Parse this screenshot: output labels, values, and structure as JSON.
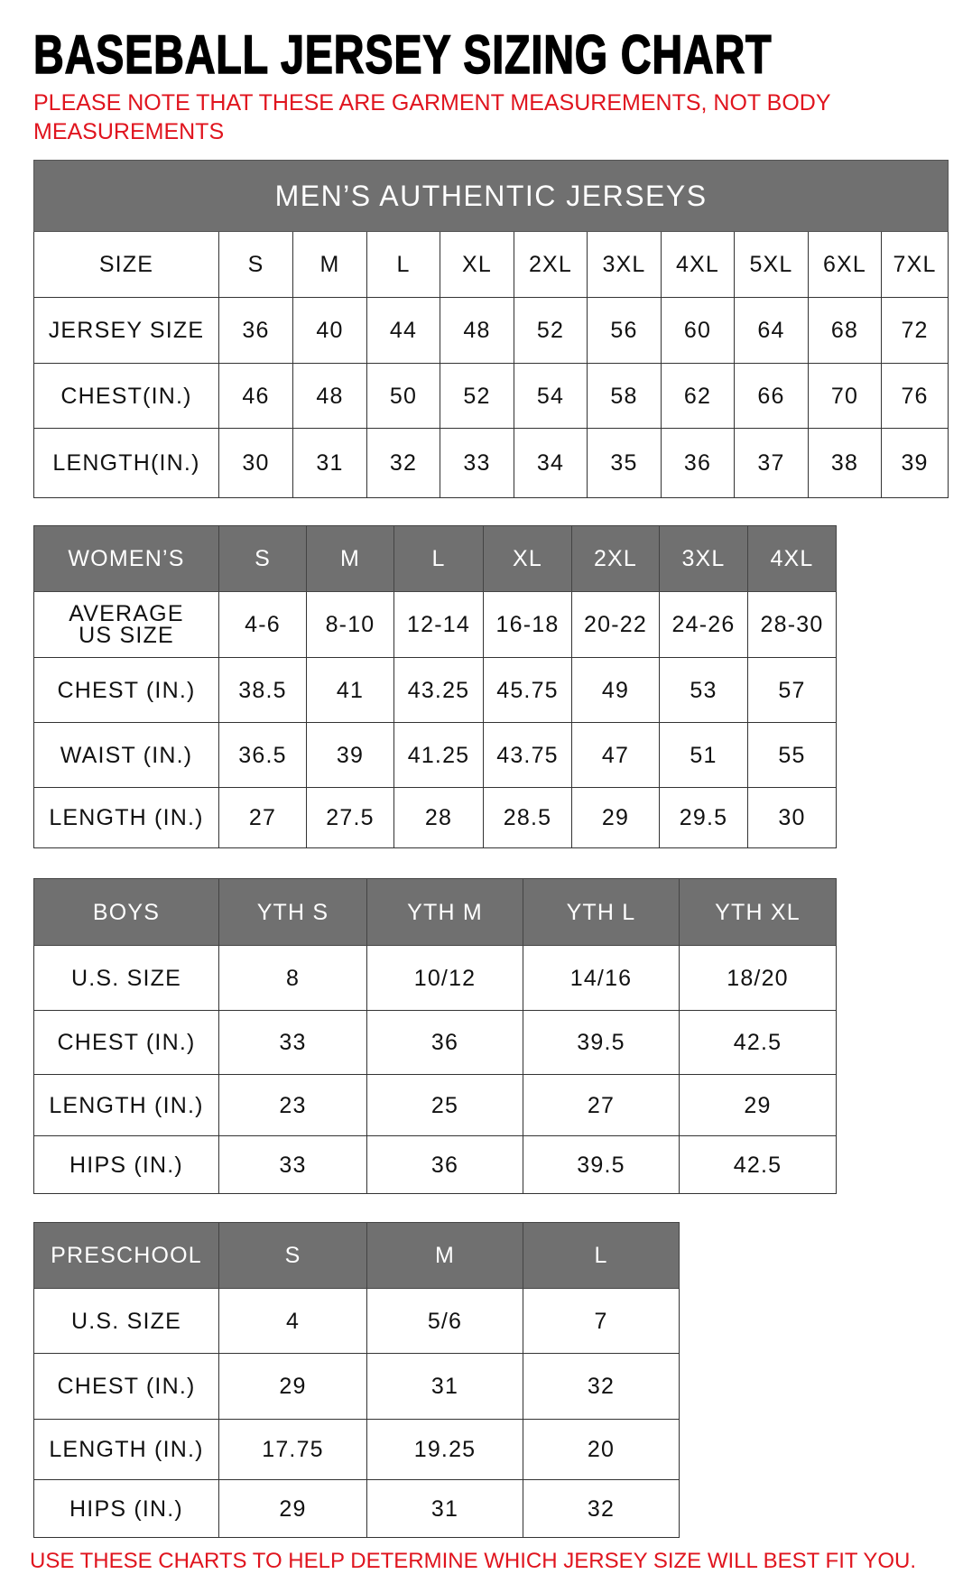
{
  "title": "BASEBALL JERSEY SIZING CHART",
  "note": "PLEASE NOTE THAT THESE ARE GARMENT MEASUREMENTS, NOT BODY MEASUREMENTS",
  "footer": "USE THESE CHARTS TO HELP DETERMINE WHICH JERSEY SIZE WILL BEST FIT YOU.",
  "colors": {
    "header_bg": "#707070",
    "note_red": "#e0141e"
  },
  "tables": [
    {
      "id": "mens",
      "banner": "MEN’S AUTHENTIC JERSEYS",
      "header": [
        "SIZE",
        "S",
        "M",
        "L",
        "XL",
        "2XL",
        "3XL",
        "4XL",
        "5XL",
        "6XL",
        "7XL"
      ],
      "header_style": "plain",
      "rows": [
        [
          "JERSEY SIZE",
          "36",
          "40",
          "44",
          "48",
          "52",
          "56",
          "60",
          "64",
          "68",
          "72"
        ],
        [
          "CHEST(IN.)",
          "46",
          "48",
          "50",
          "52",
          "54",
          "58",
          "62",
          "66",
          "70",
          "76"
        ],
        [
          "LENGTH(IN.)",
          "30",
          "31",
          "32",
          "33",
          "34",
          "35",
          "36",
          "37",
          "38",
          "39"
        ]
      ]
    },
    {
      "id": "womens",
      "header": [
        "WOMEN’S",
        "S",
        "M",
        "L",
        "XL",
        "2XL",
        "3XL",
        "4XL"
      ],
      "header_style": "gray",
      "rows": [
        [
          "AVERAGE US SIZE",
          "4-6",
          "8-10",
          "12-14",
          "16-18",
          "20-22",
          "24-26",
          "28-30"
        ],
        [
          "CHEST (IN.)",
          "38.5",
          "41",
          "43.25",
          "45.75",
          "49",
          "53",
          "57"
        ],
        [
          "WAIST (IN.)",
          "36.5",
          "39",
          "41.25",
          "43.75",
          "47",
          "51",
          "55"
        ],
        [
          "LENGTH (IN.)",
          "27",
          "27.5",
          "28",
          "28.5",
          "29",
          "29.5",
          "30"
        ]
      ]
    },
    {
      "id": "boys",
      "header": [
        "BOYS",
        "YTH S",
        "YTH M",
        "YTH L",
        "YTH XL"
      ],
      "header_style": "gray",
      "rows": [
        [
          "U.S. SIZE",
          "8",
          "10/12",
          "14/16",
          "18/20"
        ],
        [
          "CHEST (IN.)",
          "33",
          "36",
          "39.5",
          "42.5"
        ],
        [
          "LENGTH (IN.)",
          "23",
          "25",
          "27",
          "29"
        ],
        [
          "HIPS (IN.)",
          "33",
          "36",
          "39.5",
          "42.5"
        ]
      ]
    },
    {
      "id": "preschool",
      "header": [
        "PRESCHOOL",
        "S",
        "M",
        "L"
      ],
      "header_style": "gray",
      "rows": [
        [
          "U.S. SIZE",
          "4",
          "5/6",
          "7"
        ],
        [
          "CHEST (IN.)",
          "29",
          "31",
          "32"
        ],
        [
          "LENGTH (IN.)",
          "17.75",
          "19.25",
          "20"
        ],
        [
          "HIPS (IN.)",
          "29",
          "31",
          "32"
        ]
      ]
    }
  ]
}
